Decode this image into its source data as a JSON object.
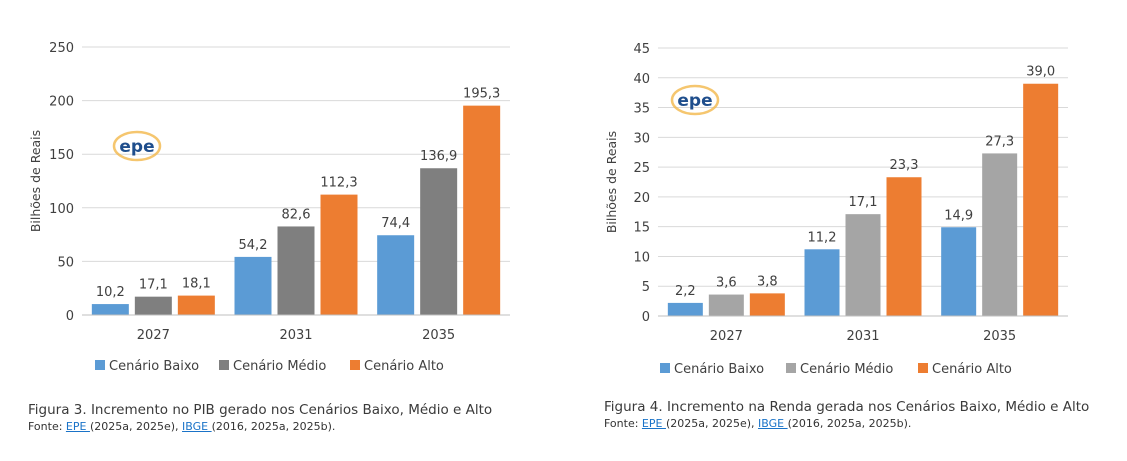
{
  "colors": {
    "baixo": "#5B9BD5",
    "medio_left": "#7F7F7F",
    "medio_right": "#A5A5A5",
    "alto": "#ED7D31"
  },
  "logo_text": "epe",
  "chart_data": [
    {
      "type": "bar",
      "ylabel": "Bilhões de Reais",
      "ylim": [
        0,
        250
      ],
      "yticks": [
        0,
        50,
        100,
        150,
        200,
        250
      ],
      "categories": [
        "2027",
        "2031",
        "2035"
      ],
      "series": [
        {
          "name": "Cenário Baixo",
          "values": [
            10.2,
            54.2,
            74.4
          ],
          "labels": [
            "10,2",
            "54,2",
            "74,4"
          ]
        },
        {
          "name": "Cenário Médio",
          "values": [
            17.1,
            82.6,
            136.9
          ],
          "labels": [
            "17,1",
            "82,6",
            "136,9"
          ]
        },
        {
          "name": "Cenário Alto",
          "values": [
            18.1,
            112.3,
            195.3
          ],
          "labels": [
            "18,1",
            "112,3",
            "195,3"
          ]
        }
      ],
      "grid": true,
      "legend": "bottom"
    },
    {
      "type": "bar",
      "ylabel": "Bilhões de Reais",
      "ylim": [
        0,
        45
      ],
      "yticks": [
        0,
        5,
        10,
        15,
        20,
        25,
        30,
        35,
        40,
        45
      ],
      "categories": [
        "2027",
        "2031",
        "2035"
      ],
      "series": [
        {
          "name": "Cenário Baixo",
          "values": [
            2.2,
            11.2,
            14.9
          ],
          "labels": [
            "2,2",
            "11,2",
            "14,9"
          ]
        },
        {
          "name": "Cenário Médio",
          "values": [
            3.6,
            17.1,
            27.3
          ],
          "labels": [
            "3,6",
            "17,1",
            "27,3"
          ]
        },
        {
          "name": "Cenário Alto",
          "values": [
            3.8,
            23.3,
            39.0
          ],
          "labels": [
            "3,8",
            "23,3",
            "39,0"
          ]
        }
      ],
      "grid": true,
      "legend": "bottom"
    }
  ],
  "captions": [
    {
      "title": "Figura 3. Incremento no PIB gerado nos Cenários Baixo, Médio e Alto",
      "source_prefix": "Fonte: ",
      "link1": "EPE ",
      "mid": "(2025a, 2025e), ",
      "link2": "IBGE ",
      "suffix": "(2016, 2025a, 2025b)."
    },
    {
      "title": "Figura 4. Incremento na Renda gerada nos Cenários Baixo, Médio e Alto",
      "source_prefix": "Fonte: ",
      "link1": "EPE ",
      "mid": "(2025a, 2025e), ",
      "link2": "IBGE ",
      "suffix": "(2016, 2025a, 2025b)."
    }
  ]
}
